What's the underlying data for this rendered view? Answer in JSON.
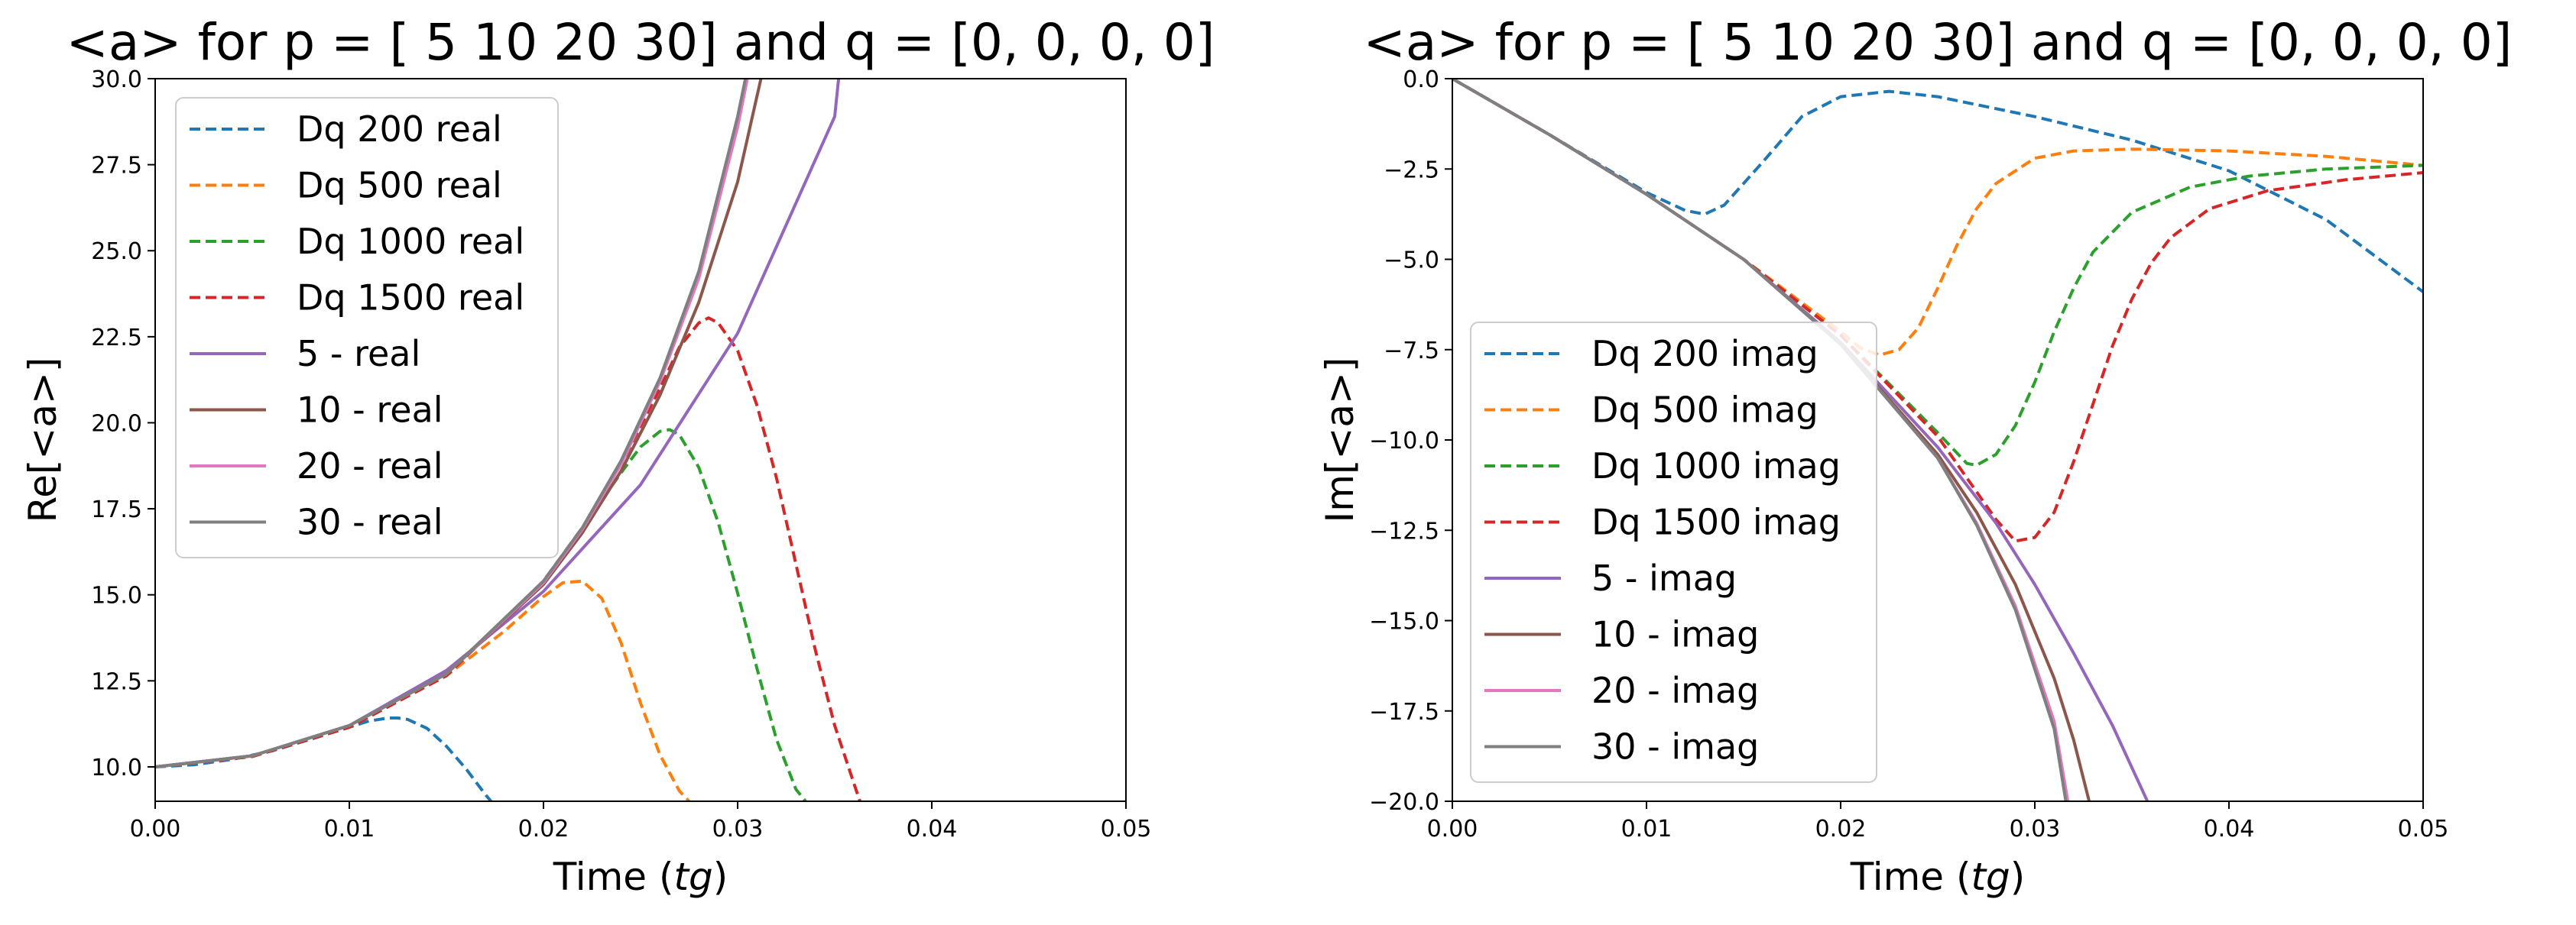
{
  "chart_data": [
    {
      "type": "line",
      "title": "<a> for p = [ 5 10 20 30] and q = [0, 0, 0, 0]",
      "xlabel_main": "Time (",
      "xlabel_italic": "tg",
      "xlabel_close": ")",
      "ylabel": "Re[<a>]",
      "xlim": [
        0.0,
        0.05
      ],
      "ylim": [
        9.0,
        30.0
      ],
      "xticks": [
        0.0,
        0.01,
        0.02,
        0.03,
        0.04,
        0.05
      ],
      "xtick_labels": [
        "0.00",
        "0.01",
        "0.02",
        "0.03",
        "0.04",
        "0.05"
      ],
      "yticks": [
        10.0,
        12.5,
        15.0,
        17.5,
        20.0,
        22.5,
        25.0,
        27.5,
        30.0
      ],
      "ytick_labels": [
        "10.0",
        "12.5",
        "15.0",
        "17.5",
        "20.0",
        "22.5",
        "25.0",
        "27.5",
        "30.0"
      ],
      "grid": false,
      "legend_position": "top-left",
      "series": [
        {
          "name": "Dq 200 real",
          "color": "#1f77b4",
          "dashed": true,
          "x": [
            0.0,
            0.002,
            0.004,
            0.006,
            0.008,
            0.01,
            0.011,
            0.012,
            0.0125,
            0.013,
            0.014,
            0.015,
            0.016,
            0.017,
            0.0173
          ],
          "y": [
            10.0,
            10.06,
            10.22,
            10.46,
            10.8,
            11.15,
            11.33,
            11.42,
            11.42,
            11.38,
            11.12,
            10.6,
            9.95,
            9.2,
            9.0
          ]
        },
        {
          "name": "Dq 500 real",
          "color": "#ff7f0e",
          "dashed": true,
          "x": [
            0.0,
            0.005,
            0.01,
            0.015,
            0.018,
            0.02,
            0.021,
            0.022,
            0.023,
            0.024,
            0.025,
            0.026,
            0.027,
            0.0275
          ],
          "y": [
            10.0,
            10.3,
            11.15,
            12.65,
            13.95,
            14.95,
            15.35,
            15.4,
            14.9,
            13.6,
            11.85,
            10.35,
            9.3,
            9.0
          ]
        },
        {
          "name": "Dq 1000 real",
          "color": "#2ca02c",
          "dashed": true,
          "x": [
            0.0,
            0.005,
            0.01,
            0.015,
            0.02,
            0.022,
            0.024,
            0.025,
            0.026,
            0.0265,
            0.027,
            0.028,
            0.029,
            0.03,
            0.031,
            0.032,
            0.033,
            0.0335
          ],
          "y": [
            10.0,
            10.3,
            11.15,
            12.65,
            15.4,
            16.95,
            18.55,
            19.3,
            19.75,
            19.8,
            19.65,
            18.7,
            17.1,
            15.05,
            12.85,
            10.8,
            9.35,
            9.0
          ]
        },
        {
          "name": "Dq 1500 real",
          "color": "#d62728",
          "dashed": true,
          "x": [
            0.0,
            0.005,
            0.01,
            0.015,
            0.02,
            0.022,
            0.024,
            0.026,
            0.027,
            0.028,
            0.0285,
            0.029,
            0.03,
            0.031,
            0.032,
            0.033,
            0.034,
            0.035,
            0.036,
            0.0363
          ],
          "y": [
            10.0,
            10.3,
            11.15,
            12.65,
            15.4,
            16.95,
            18.8,
            21.0,
            22.2,
            22.9,
            23.05,
            22.9,
            22.1,
            20.5,
            18.4,
            15.9,
            13.4,
            11.2,
            9.5,
            9.0
          ]
        },
        {
          "name": "5 - real",
          "color": "#9467bd",
          "dashed": false,
          "x": [
            0.0,
            0.005,
            0.01,
            0.015,
            0.02,
            0.025,
            0.03,
            0.035,
            0.0352
          ],
          "y": [
            10.0,
            10.32,
            11.2,
            12.8,
            15.1,
            18.2,
            22.6,
            28.9,
            30.0
          ]
        },
        {
          "name": "10 - real",
          "color": "#8c564b",
          "dashed": false,
          "x": [
            0.0,
            0.005,
            0.01,
            0.015,
            0.02,
            0.022,
            0.024,
            0.026,
            0.028,
            0.03,
            0.031,
            0.0312
          ],
          "y": [
            10.0,
            10.32,
            11.2,
            12.7,
            15.3,
            16.8,
            18.6,
            20.8,
            23.5,
            27.0,
            29.5,
            30.0
          ]
        },
        {
          "name": "20 - real",
          "color": "#e377c2",
          "dashed": false,
          "x": [
            0.0,
            0.005,
            0.01,
            0.015,
            0.02,
            0.022,
            0.024,
            0.026,
            0.028,
            0.03,
            0.0305
          ],
          "y": [
            10.0,
            10.32,
            11.2,
            12.7,
            15.35,
            16.9,
            18.8,
            21.2,
            24.2,
            28.6,
            30.0
          ]
        },
        {
          "name": "30 - real",
          "color": "#7f7f7f",
          "dashed": false,
          "x": [
            0.0,
            0.005,
            0.01,
            0.015,
            0.02,
            0.022,
            0.024,
            0.026,
            0.028,
            0.03,
            0.0304
          ],
          "y": [
            10.0,
            10.32,
            11.2,
            12.7,
            15.4,
            16.95,
            18.9,
            21.3,
            24.4,
            28.9,
            30.0
          ]
        }
      ]
    },
    {
      "type": "line",
      "title": "<a> for p = [ 5 10 20 30] and q = [0, 0, 0, 0]",
      "xlabel_main": "Time (",
      "xlabel_italic": "tg",
      "xlabel_close": ")",
      "ylabel": "Im[<a>]",
      "xlim": [
        0.0,
        0.05
      ],
      "ylim": [
        -20.0,
        0.0
      ],
      "xticks": [
        0.0,
        0.01,
        0.02,
        0.03,
        0.04,
        0.05
      ],
      "xtick_labels": [
        "0.00",
        "0.01",
        "0.02",
        "0.03",
        "0.04",
        "0.05"
      ],
      "yticks": [
        0.0,
        -2.5,
        -5.0,
        -7.5,
        -10.0,
        -12.5,
        -15.0,
        -17.5,
        -20.0
      ],
      "ytick_labels": [
        "0.0",
        "−2.5",
        "−5.0",
        "−7.5",
        "−10.0",
        "−12.5",
        "−15.0",
        "−17.5",
        "−20.0"
      ],
      "grid": false,
      "legend_position": "bottom-left",
      "series": [
        {
          "name": "Dq 200 imag",
          "color": "#1f77b4",
          "dashed": true,
          "x": [
            0.0,
            0.005,
            0.01,
            0.012,
            0.013,
            0.014,
            0.016,
            0.018,
            0.02,
            0.0225,
            0.025,
            0.03,
            0.035,
            0.04,
            0.045,
            0.05
          ],
          "y": [
            0.0,
            -1.55,
            -3.15,
            -3.65,
            -3.75,
            -3.5,
            -2.3,
            -1.05,
            -0.5,
            -0.35,
            -0.5,
            -1.05,
            -1.7,
            -2.55,
            -3.9,
            -5.9
          ]
        },
        {
          "name": "Dq 500 imag",
          "color": "#ff7f0e",
          "dashed": true,
          "x": [
            0.0,
            0.005,
            0.01,
            0.015,
            0.02,
            0.021,
            0.022,
            0.023,
            0.024,
            0.025,
            0.026,
            0.027,
            0.028,
            0.03,
            0.032,
            0.035,
            0.04,
            0.045,
            0.05
          ],
          "y": [
            0.0,
            -1.55,
            -3.2,
            -5.0,
            -7.0,
            -7.45,
            -7.65,
            -7.5,
            -6.9,
            -5.8,
            -4.6,
            -3.6,
            -2.9,
            -2.2,
            -2.0,
            -1.95,
            -2.0,
            -2.15,
            -2.4
          ]
        },
        {
          "name": "Dq 1000 imag",
          "color": "#2ca02c",
          "dashed": true,
          "x": [
            0.0,
            0.005,
            0.01,
            0.015,
            0.02,
            0.025,
            0.0265,
            0.027,
            0.028,
            0.029,
            0.03,
            0.031,
            0.032,
            0.033,
            0.035,
            0.038,
            0.041,
            0.045,
            0.05
          ],
          "y": [
            0.0,
            -1.55,
            -3.2,
            -5.0,
            -7.1,
            -9.8,
            -10.65,
            -10.7,
            -10.4,
            -9.6,
            -8.4,
            -7.0,
            -5.8,
            -4.8,
            -3.7,
            -3.0,
            -2.7,
            -2.5,
            -2.4
          ]
        },
        {
          "name": "Dq 1500 imag",
          "color": "#d62728",
          "dashed": true,
          "x": [
            0.0,
            0.005,
            0.01,
            0.015,
            0.02,
            0.025,
            0.028,
            0.029,
            0.03,
            0.031,
            0.032,
            0.033,
            0.034,
            0.035,
            0.036,
            0.037,
            0.039,
            0.042,
            0.046,
            0.05
          ],
          "y": [
            0.0,
            -1.55,
            -3.2,
            -5.0,
            -7.1,
            -9.9,
            -12.2,
            -12.8,
            -12.7,
            -12.0,
            -10.6,
            -9.0,
            -7.4,
            -6.1,
            -5.1,
            -4.4,
            -3.6,
            -3.1,
            -2.8,
            -2.6
          ]
        },
        {
          "name": "5 - imag",
          "color": "#9467bd",
          "dashed": false,
          "x": [
            0.0,
            0.005,
            0.01,
            0.015,
            0.02,
            0.025,
            0.028,
            0.03,
            0.032,
            0.034,
            0.0358
          ],
          "y": [
            0.0,
            -1.55,
            -3.2,
            -5.0,
            -7.3,
            -10.2,
            -12.3,
            -14.0,
            -15.9,
            -17.9,
            -20.0
          ]
        },
        {
          "name": "10 - imag",
          "color": "#8c564b",
          "dashed": false,
          "x": [
            0.0,
            0.005,
            0.01,
            0.015,
            0.02,
            0.025,
            0.027,
            0.029,
            0.031,
            0.032,
            0.0328
          ],
          "y": [
            0.0,
            -1.55,
            -3.2,
            -5.0,
            -7.35,
            -10.4,
            -12.0,
            -14.0,
            -16.6,
            -18.3,
            -20.0
          ]
        },
        {
          "name": "20 - imag",
          "color": "#e377c2",
          "dashed": false,
          "x": [
            0.0,
            0.005,
            0.01,
            0.015,
            0.02,
            0.025,
            0.027,
            0.029,
            0.031,
            0.0317
          ],
          "y": [
            0.0,
            -1.55,
            -3.2,
            -5.0,
            -7.35,
            -10.5,
            -12.3,
            -14.6,
            -17.8,
            -20.0
          ]
        },
        {
          "name": "30 - imag",
          "color": "#7f7f7f",
          "dashed": false,
          "x": [
            0.0,
            0.005,
            0.01,
            0.015,
            0.02,
            0.025,
            0.027,
            0.029,
            0.031,
            0.0316
          ],
          "y": [
            0.0,
            -1.55,
            -3.2,
            -5.0,
            -7.35,
            -10.5,
            -12.35,
            -14.7,
            -18.0,
            -20.0
          ]
        }
      ]
    }
  ]
}
